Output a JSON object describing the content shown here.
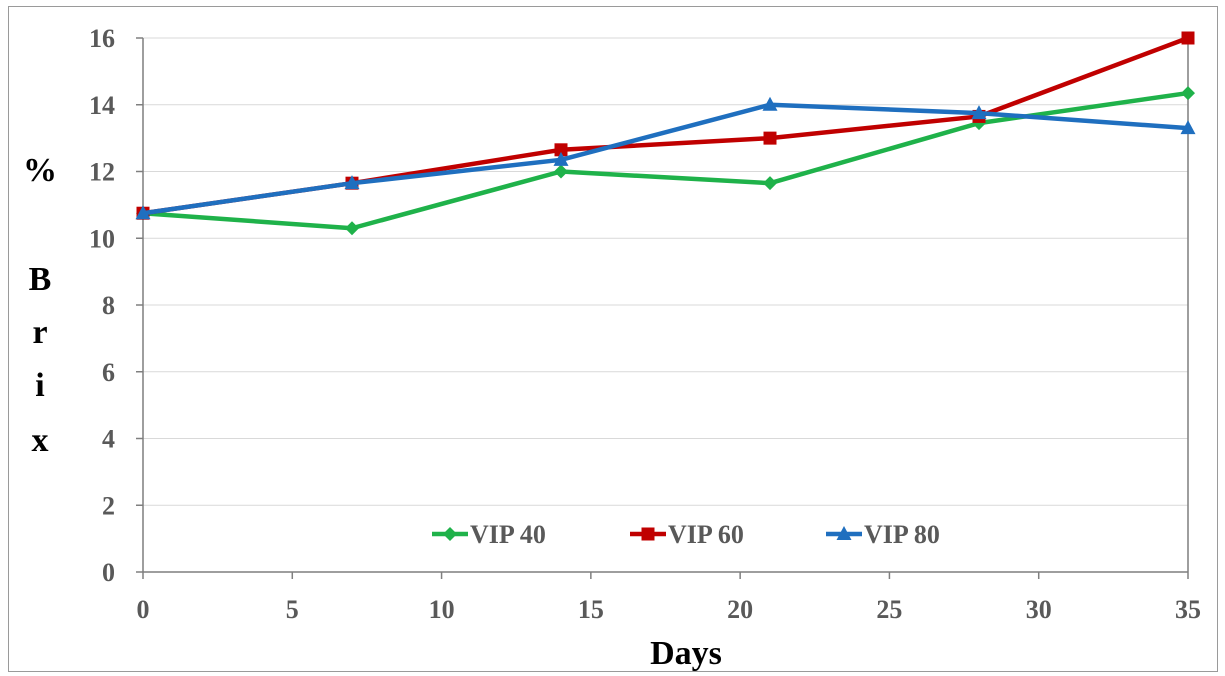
{
  "chart_data": {
    "type": "line",
    "title": "",
    "xlabel": "Days",
    "ylabel": "% Brix",
    "ylabel_chars": [
      "%",
      "B",
      "r",
      "i",
      "x"
    ],
    "xlim": [
      0,
      35
    ],
    "ylim": [
      0,
      16
    ],
    "xticks": [
      0,
      5,
      10,
      15,
      20,
      25,
      30,
      35
    ],
    "yticks": [
      0,
      2,
      4,
      6,
      8,
      10,
      12,
      14,
      16
    ],
    "grid": "horizontal",
    "legend_position": "bottom-center",
    "series": [
      {
        "name": "VIP 40",
        "color": "#1fb24a",
        "marker": "diamond",
        "x": [
          0,
          7,
          14,
          21,
          28,
          35
        ],
        "y": [
          10.75,
          10.3,
          12.0,
          11.65,
          13.45,
          14.35
        ]
      },
      {
        "name": "VIP 60",
        "color": "#c00000",
        "marker": "square",
        "x": [
          0,
          7,
          14,
          21,
          28,
          35
        ],
        "y": [
          10.75,
          11.65,
          12.65,
          13.0,
          13.65,
          16.0
        ]
      },
      {
        "name": "VIP 80",
        "color": "#1f6fbf",
        "marker": "triangle",
        "x": [
          0,
          7,
          14,
          21,
          28,
          35
        ],
        "y": [
          10.75,
          11.65,
          12.35,
          14.0,
          13.75,
          13.3
        ]
      }
    ]
  }
}
